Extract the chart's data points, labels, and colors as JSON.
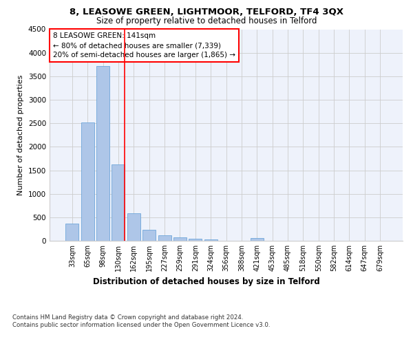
{
  "title_line1": "8, LEASOWE GREEN, LIGHTMOOR, TELFORD, TF4 3QX",
  "title_line2": "Size of property relative to detached houses in Telford",
  "xlabel": "Distribution of detached houses by size in Telford",
  "ylabel": "Number of detached properties",
  "categories": [
    "33sqm",
    "65sqm",
    "98sqm",
    "130sqm",
    "162sqm",
    "195sqm",
    "227sqm",
    "259sqm",
    "291sqm",
    "324sqm",
    "356sqm",
    "388sqm",
    "421sqm",
    "453sqm",
    "485sqm",
    "518sqm",
    "550sqm",
    "582sqm",
    "614sqm",
    "647sqm",
    "679sqm"
  ],
  "values": [
    370,
    2510,
    3720,
    1630,
    590,
    230,
    110,
    70,
    45,
    35,
    0,
    0,
    55,
    0,
    0,
    0,
    0,
    0,
    0,
    0,
    0
  ],
  "bar_color": "#aec6e8",
  "bar_edge_color": "#5b9bd5",
  "property_line_color": "red",
  "annotation_text": "8 LEASOWE GREEN: 141sqm\n← 80% of detached houses are smaller (7,339)\n20% of semi-detached houses are larger (1,865) →",
  "annotation_box_color": "red",
  "annotation_text_color": "black",
  "ylim": [
    0,
    4500
  ],
  "yticks": [
    0,
    500,
    1000,
    1500,
    2000,
    2500,
    3000,
    3500,
    4000,
    4500
  ],
  "footnote": "Contains HM Land Registry data © Crown copyright and database right 2024.\nContains public sector information licensed under the Open Government Licence v3.0.",
  "background_color": "#eef2fb",
  "grid_color": "#cccccc",
  "fig_background": "#ffffff"
}
